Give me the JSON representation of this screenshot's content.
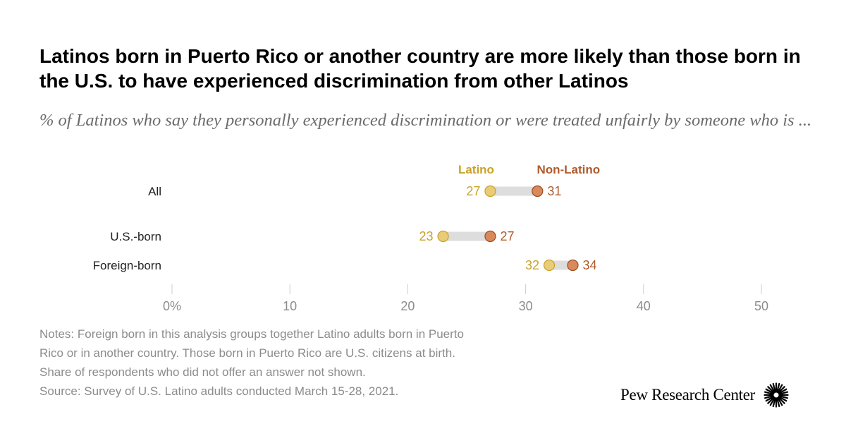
{
  "title": "Latinos born in Puerto Rico or another country are more likely than those born in the U.S. to have experienced discrimination from other Latinos",
  "subtitle": "% of Latinos who say they personally experienced discrimination or were treated unfairly by someone who is ...",
  "chart_data": {
    "type": "dot",
    "categories": [
      "All",
      "U.S.-born",
      "Foreign-born"
    ],
    "series": [
      {
        "name": "Latino",
        "values": [
          27,
          23,
          32
        ],
        "color": "#e8cc7a",
        "label_color": "#c9a227"
      },
      {
        "name": "Non-Latino",
        "values": [
          31,
          27,
          34
        ],
        "color": "#d98a5c",
        "label_color": "#b05a2c"
      }
    ],
    "xlim": [
      0,
      50
    ],
    "x_ticks": [
      0,
      10,
      20,
      30,
      40,
      50
    ],
    "x_tick_labels": [
      "0%",
      "10",
      "20",
      "30",
      "40",
      "50"
    ],
    "grid": false,
    "legend": "top-inline",
    "connector_color": "#dddddd"
  },
  "notes": [
    "Notes: Foreign born in this analysis groups together Latino adults born in Puerto",
    "Rico or in another country. Those born in Puerto Rico are U.S. citizens at birth.",
    "Share of respondents who did not offer an answer not shown.",
    "Source: Survey of U.S. Latino adults conducted March 15-28, 2021."
  ],
  "logo": {
    "text": "Pew Research Center",
    "icon": "pew-sunburst-icon"
  }
}
